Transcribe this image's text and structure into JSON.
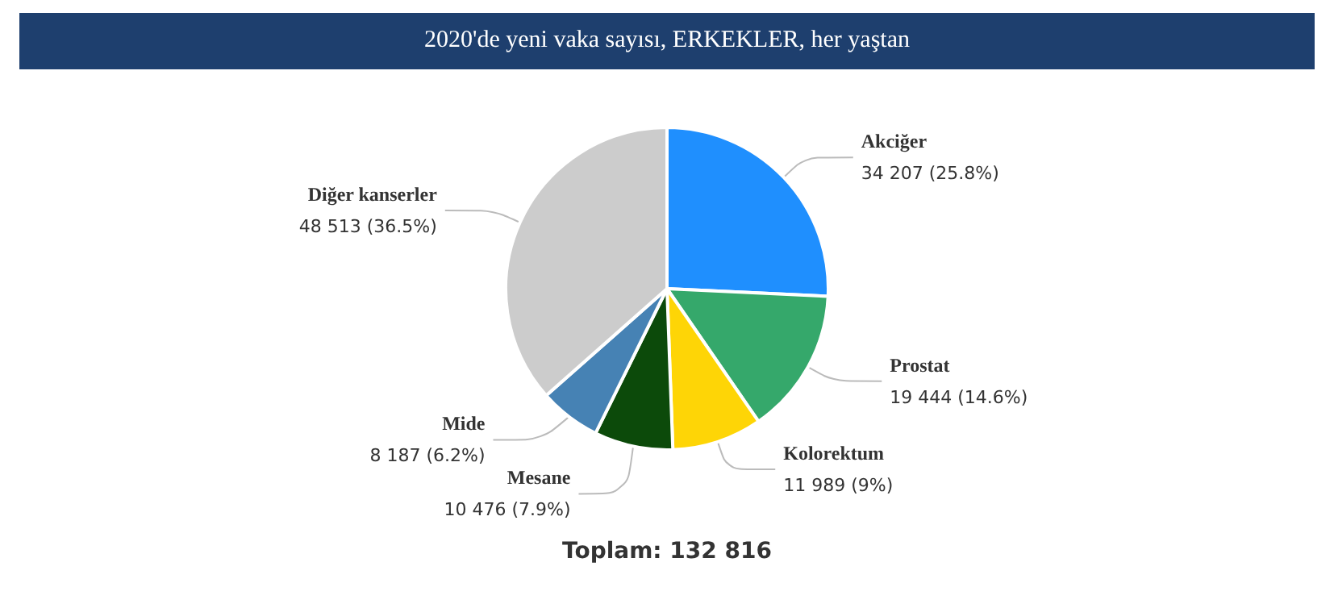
{
  "chart_data": {
    "type": "pie",
    "title": "2020'de yeni vaka sayısı, ERKEKLER, her yaştan",
    "categories": [
      "Akciğer",
      "Prostat",
      "Kolorektum",
      "Mesane",
      "Mide",
      "Diğer kanserler"
    ],
    "values": [
      34207,
      19444,
      11989,
      10476,
      8187,
      48513
    ],
    "colors": [
      "#1f8ffe",
      "#35a86b",
      "#fed506",
      "#0c4a0a",
      "#4682b4",
      "#cccccc"
    ],
    "value_labels": [
      "34 207 (25.8%)",
      "19 444 (14.6%)",
      "11 989 (9%)",
      "10 476 (7.9%)",
      "8 187 (6.2%)",
      "48 513 (36.5%)"
    ],
    "annotations": [
      "Toplam: 132 816"
    ],
    "legend": false
  }
}
